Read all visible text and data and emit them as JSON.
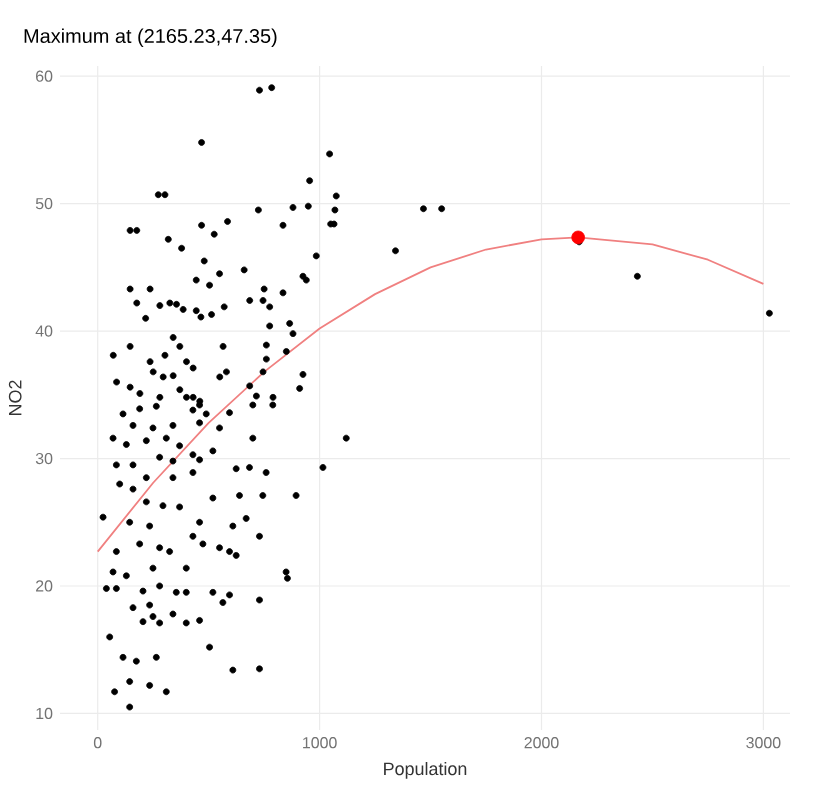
{
  "chart_data": {
    "type": "scatter",
    "title": "Maximum at (2165.23,47.35)",
    "xlabel": "Population",
    "ylabel": "NO2",
    "xlim": [
      -170,
      3120
    ],
    "ylim": [
      8.7,
      60.8
    ],
    "xticks": [
      0,
      1000,
      2000,
      3000
    ],
    "yticks": [
      10,
      20,
      30,
      40,
      50,
      60
    ],
    "grid": true,
    "series": [
      {
        "marker": "circle",
        "color": "#000000",
        "x": [
          729,
          784,
          468,
          1045,
          955,
          273,
          303,
          146,
          176,
          724,
          835,
          880,
          949,
          1075,
          1069,
          1050,
          1065,
          468,
          525,
          585,
          318,
          378,
          985,
          480,
          146,
          236,
          444,
          504,
          549,
          660,
          750,
          835,
          925,
          940,
          176,
          280,
          325,
          355,
          385,
          444,
          513,
          570,
          685,
          745,
          775,
          216,
          465,
          775,
          760,
          865,
          880,
          340,
          370,
          565,
          146,
          70,
          236,
          303,
          400,
          760,
          850,
          85,
          146,
          250,
          295,
          340,
          430,
          580,
          550,
          745,
          925,
          190,
          280,
          370,
          685,
          910,
          400,
          430,
          460,
          715,
          790,
          114,
          189,
          264,
          429,
          459,
          489,
          594,
          699,
          789,
          159,
          249,
          339,
          459,
          549,
          699,
          1120,
          69,
          129,
          219,
          309,
          369,
          429,
          459,
          519,
          159,
          279,
          339,
          84,
          1015,
          624,
          684,
          759,
          219,
          339,
          429,
          99,
          159,
          639,
          744,
          894,
          219,
          294,
          369,
          519,
          24,
          144,
          234,
          459,
          669,
          609,
          729,
          84,
          189,
          279,
          324,
          429,
          474,
          549,
          594,
          624,
          69,
          129,
          249,
          399,
          39,
          84,
          204,
          279,
          354,
          399,
          519,
          594,
          564,
          849,
          855,
          729,
          159,
          234,
          339,
          279,
          399,
          459,
          54,
          204,
          249,
          504,
          114,
          174,
          264,
          609,
          729,
          144,
          234,
          309,
          76,
          144,
          1342,
          1468,
          1550,
          2170,
          2432,
          3027
        ],
        "values": [
          58.9,
          59.1,
          54.8,
          53.9,
          51.8,
          50.7,
          50.7,
          47.9,
          47.9,
          49.5,
          48.3,
          49.7,
          49.8,
          50.6,
          49.5,
          48.4,
          48.4,
          48.3,
          47.6,
          48.6,
          47.2,
          46.5,
          45.9,
          45.5,
          43.3,
          43.3,
          44.0,
          43.6,
          44.5,
          44.8,
          43.3,
          43.0,
          44.3,
          44.0,
          42.2,
          42.0,
          42.2,
          42.1,
          41.7,
          41.6,
          41.3,
          41.9,
          42.4,
          42.4,
          41.9,
          41.0,
          41.1,
          40.4,
          38.9,
          40.6,
          39.8,
          39.5,
          38.8,
          38.8,
          38.8,
          38.1,
          37.6,
          38.1,
          37.6,
          37.8,
          38.4,
          36.0,
          35.6,
          36.8,
          36.4,
          36.5,
          37.1,
          36.8,
          36.4,
          36.8,
          36.6,
          35.1,
          34.8,
          35.4,
          35.7,
          35.5,
          34.8,
          34.8,
          34.5,
          34.9,
          34.8,
          33.5,
          33.9,
          34.1,
          33.8,
          34.2,
          33.5,
          33.6,
          34.2,
          34.2,
          32.6,
          32.4,
          32.6,
          32.8,
          32.4,
          31.6,
          31.6,
          31.6,
          31.1,
          31.4,
          31.6,
          31.0,
          30.3,
          29.9,
          30.6,
          29.5,
          30.1,
          29.8,
          29.5,
          29.3,
          29.2,
          29.3,
          28.9,
          28.5,
          28.5,
          28.9,
          28.0,
          27.6,
          27.1,
          27.1,
          27.1,
          26.6,
          26.3,
          26.2,
          26.9,
          25.4,
          25.0,
          24.7,
          25.0,
          25.3,
          24.7,
          23.9,
          22.7,
          23.3,
          23.0,
          22.7,
          23.9,
          23.3,
          23.0,
          22.7,
          22.4,
          21.1,
          20.8,
          21.4,
          21.4,
          19.8,
          19.8,
          19.6,
          20.0,
          19.5,
          19.5,
          19.5,
          19.3,
          18.7,
          21.1,
          20.6,
          18.9,
          18.3,
          18.5,
          17.8,
          17.1,
          17.1,
          17.3,
          16.0,
          17.2,
          17.6,
          15.2,
          14.4,
          14.1,
          14.4,
          13.4,
          13.5,
          12.5,
          12.2,
          11.7,
          11.7,
          10.5,
          46.3,
          49.6,
          49.6,
          47.0,
          44.3,
          41.4
        ]
      },
      {
        "type": "line",
        "marker": "none",
        "color": "#f08080",
        "x": [
          0,
          250,
          500,
          750,
          1000,
          1250,
          1500,
          1750,
          2000,
          2165.23,
          2500,
          2750,
          3000
        ],
        "values": [
          22.7,
          28.1,
          32.8,
          36.8,
          40.2,
          42.9,
          45.0,
          46.4,
          47.2,
          47.35,
          46.8,
          45.6,
          43.7
        ]
      },
      {
        "marker": "circle",
        "color": "#ff0000",
        "x": [
          2165.23
        ],
        "values": [
          47.35
        ]
      }
    ]
  }
}
